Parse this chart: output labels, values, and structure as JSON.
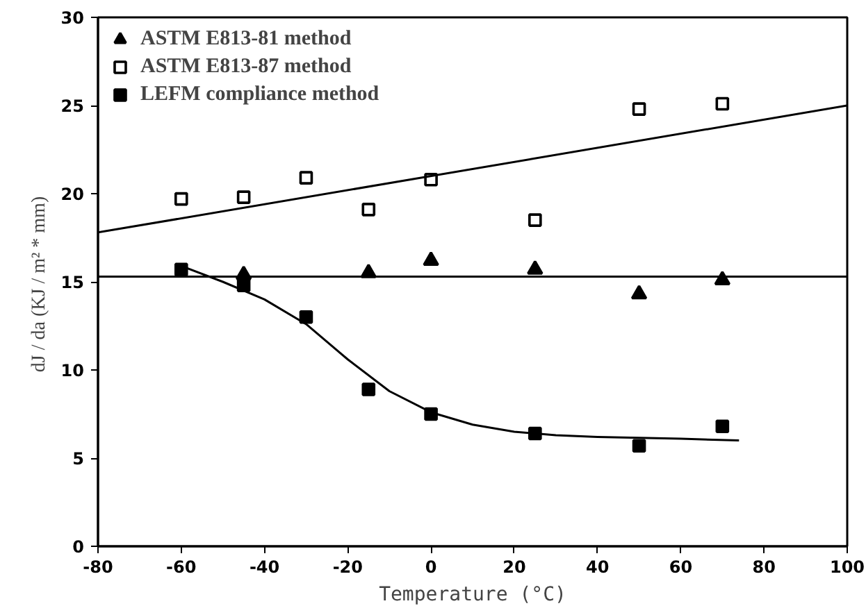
{
  "chart_data": {
    "type": "scatter",
    "xlabel": "Temperature (°C)",
    "ylabel": "dJ / da  (KJ / m² * mm)",
    "xlim": [
      -80,
      100
    ],
    "ylim": [
      0,
      30
    ],
    "xticks": [
      -80,
      -60,
      -40,
      -20,
      0,
      20,
      40,
      60,
      80,
      100
    ],
    "yticks": [
      0,
      5,
      10,
      15,
      20,
      25,
      30
    ],
    "grid": false,
    "legend": "top left",
    "series": [
      {
        "name": "ASTM E813-81 method",
        "marker": "triangle",
        "color": "#000000",
        "x": [
          -45,
          -15,
          0,
          25,
          50,
          70
        ],
        "values": [
          15.4,
          15.5,
          16.2,
          15.7,
          14.3,
          15.1
        ]
      },
      {
        "name": "ASTM E813-87 method",
        "marker": "square",
        "color": "#ffffff",
        "x": [
          -60,
          -45,
          -30,
          -15,
          0,
          25,
          50,
          70
        ],
        "values": [
          19.7,
          19.8,
          20.9,
          19.1,
          20.8,
          18.5,
          24.8,
          25.1
        ]
      },
      {
        "name": "LEFM compliance method",
        "marker": "square",
        "color": "#000000",
        "x": [
          -60,
          -45,
          -30,
          -15,
          0,
          25,
          50,
          70
        ],
        "values": [
          15.7,
          14.8,
          13.0,
          8.9,
          7.5,
          6.4,
          5.7,
          6.8
        ]
      },
      {
        "type": "line",
        "color": "#000000",
        "line_style": "solid",
        "x": [
          -80,
          100
        ],
        "values": [
          17.8,
          25.0
        ]
      },
      {
        "type": "line",
        "color": "#000000",
        "line_style": "solid",
        "x": [
          -80,
          100
        ],
        "values": [
          15.3,
          15.3
        ]
      },
      {
        "type": "line",
        "color": "#000000",
        "line_style": "solid",
        "x": [
          -60,
          -50,
          -40,
          -30,
          -20,
          -10,
          0,
          10,
          20,
          30,
          40,
          50,
          60,
          74
        ],
        "values": [
          15.9,
          15.0,
          14.0,
          12.6,
          10.6,
          8.8,
          7.6,
          6.9,
          6.5,
          6.3,
          6.2,
          6.15,
          6.1,
          6.0
        ]
      }
    ]
  }
}
